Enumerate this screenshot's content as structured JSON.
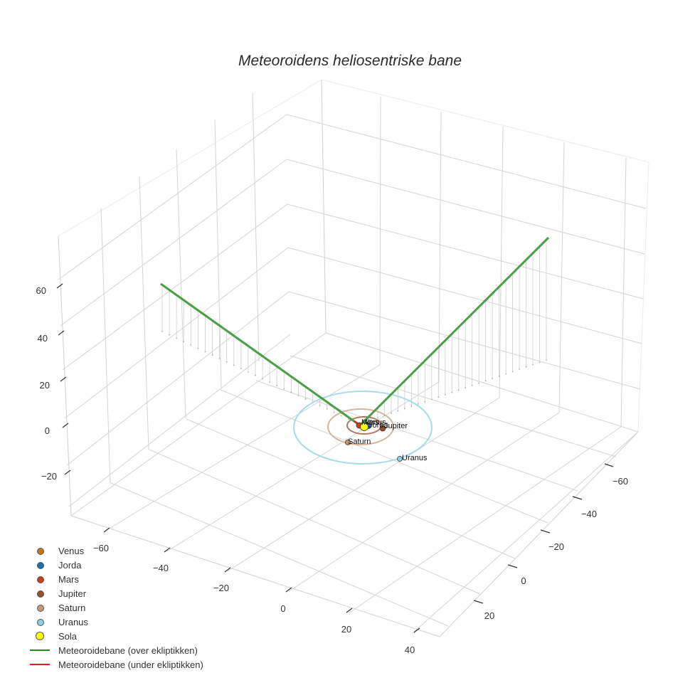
{
  "title": "Meteoroidens heliosentriske bane",
  "axes": {
    "x_ticks": [
      "−60",
      "−40",
      "−20",
      "0",
      "20",
      "40"
    ],
    "y_ticks": [
      "−60",
      "−40",
      "−20",
      "0",
      "20"
    ],
    "z_ticks": [
      "60",
      "40",
      "20",
      "0",
      "−20"
    ]
  },
  "planet_labels": {
    "venus": "Venus",
    "jorda": "Jorda",
    "mars": "Mars",
    "jupiter": "Jupiter",
    "saturn": "Saturn",
    "uranus": "Uranus"
  },
  "legend": [
    {
      "label": "Venus",
      "type": "marker",
      "color": "#c07a1a"
    },
    {
      "label": "Jorda",
      "type": "marker",
      "color": "#1a6fb5"
    },
    {
      "label": "Mars",
      "type": "marker",
      "color": "#c8401a"
    },
    {
      "label": "Jupiter",
      "type": "marker",
      "color": "#9a4e2e"
    },
    {
      "label": "Saturn",
      "type": "marker",
      "color": "#c49a74"
    },
    {
      "label": "Uranus",
      "type": "marker",
      "color": "#8ecfe0"
    },
    {
      "label": "Sola",
      "type": "marker-large",
      "color": "#ffff00"
    },
    {
      "label": "Meteoroidebane (over ekliptikken)",
      "type": "line",
      "color": "#1e8c1e"
    },
    {
      "label": "Meteoroidebane (under ekliptikken)",
      "type": "line",
      "color": "#e02020"
    }
  ],
  "chart_data": {
    "type": "scatter3d",
    "title": "Meteoroidens heliosentriske bane",
    "xlabel": "",
    "ylabel": "",
    "zlabel": "",
    "x_range": [
      -70,
      45
    ],
    "y_range": [
      -70,
      30
    ],
    "z_range": [
      -30,
      75
    ],
    "x_ticks": [
      -60,
      -40,
      -20,
      0,
      20,
      40
    ],
    "y_ticks": [
      -60,
      -40,
      -20,
      0,
      20
    ],
    "z_ticks": [
      -20,
      0,
      20,
      40,
      60
    ],
    "grid": true,
    "legend_position": "bottom-left",
    "series": [
      {
        "name": "Venus",
        "type": "marker",
        "color": "#c07a1a",
        "x": 0.7,
        "y": 0.1,
        "z": 0
      },
      {
        "name": "Jorda",
        "type": "marker",
        "color": "#1a6fb5",
        "x": 1.0,
        "y": -0.1,
        "z": 0
      },
      {
        "name": "Mars",
        "type": "marker",
        "color": "#c8401a",
        "x": -1.4,
        "y": 0.3,
        "z": 0
      },
      {
        "name": "Jupiter",
        "type": "marker",
        "color": "#9a4e2e",
        "x": 4.5,
        "y": -2.5,
        "z": 0,
        "orbit_radius": 5.2
      },
      {
        "name": "Saturn",
        "type": "marker",
        "color": "#c49a74",
        "x": -5.5,
        "y": 7.5,
        "z": 0,
        "orbit_radius": 9.5
      },
      {
        "name": "Uranus",
        "type": "marker",
        "color": "#8ecfe0",
        "x": 12,
        "y": 14,
        "z": 0,
        "orbit_radius": 19.2
      },
      {
        "name": "Sola",
        "type": "marker-large",
        "color": "#ffff00",
        "x": 0,
        "y": 0,
        "z": 0
      },
      {
        "name": "Meteoroidebane (over ekliptikken)",
        "type": "line",
        "color": "#1e8c1e",
        "points": [
          [
            -62,
            20,
            62
          ],
          [
            0,
            0,
            0
          ],
          [
            40,
            -60,
            75
          ]
        ]
      },
      {
        "name": "Meteoroidebane (under ekliptikken)",
        "type": "line",
        "color": "#e02020",
        "points": [
          [
            -1.5,
            0.5,
            -0.3
          ],
          [
            0,
            0,
            0
          ]
        ]
      }
    ]
  }
}
